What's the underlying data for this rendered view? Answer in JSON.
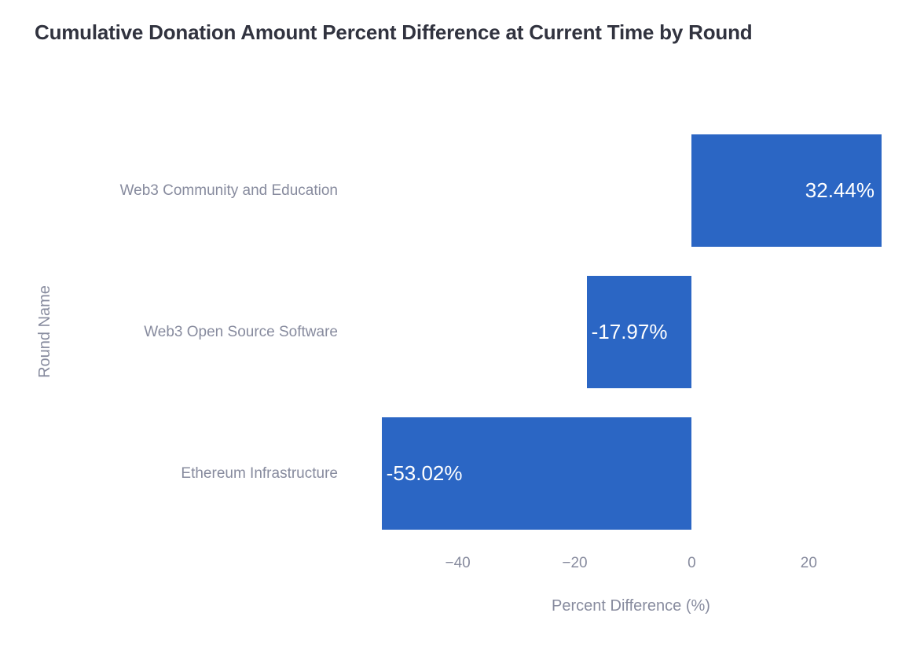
{
  "colors": {
    "background": "#ffffff",
    "bar": "#2b66c4",
    "bar_label_text": "#ffffff",
    "title_text": "#31333f",
    "axis_text": "#878b9e"
  },
  "chart_data": {
    "type": "bar",
    "orientation": "horizontal",
    "title": "Cumulative Donation Amount Percent Difference at Current Time by Round",
    "xlabel": "Percent Difference (%)",
    "ylabel": "Round Name",
    "categories": [
      "Web3 Community and Education",
      "Web3 Open Source Software",
      "Ethereum Infrastructure"
    ],
    "values": [
      32.44,
      -17.97,
      -53.02
    ],
    "bar_labels": [
      "32.44%",
      "-17.97%",
      "-53.02%"
    ],
    "xlim": [
      -58.35,
      37.55
    ],
    "xticks": [
      -40,
      -20,
      0,
      20
    ],
    "xtick_labels": [
      "−40",
      "−20",
      "0",
      "20"
    ],
    "grid": false,
    "legend": null
  }
}
